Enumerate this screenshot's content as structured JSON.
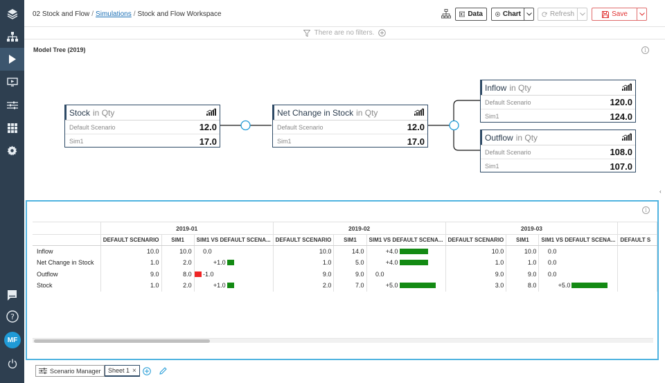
{
  "breadcrumb": {
    "root": "02 Stock and Flow",
    "link": "Simulations",
    "current": "Stock and Flow Workspace",
    "sep": "/"
  },
  "toolbar": {
    "data_label": "Data",
    "chart_label": "Chart",
    "refresh_label": "Refresh",
    "save_label": "Save"
  },
  "filters": {
    "empty_text": "There are no filters."
  },
  "model_tree": {
    "title": "Model Tree (2019)",
    "nodes": [
      {
        "name": "Stock",
        "unit": "in Qty",
        "rows": [
          {
            "label": "Default Scenario",
            "value": "12.0"
          },
          {
            "label": "Sim1",
            "value": "17.0"
          }
        ]
      },
      {
        "name": "Net Change in Stock",
        "unit": "in Qty",
        "rows": [
          {
            "label": "Default Scenario",
            "value": "12.0"
          },
          {
            "label": "Sim1",
            "value": "17.0"
          }
        ]
      },
      {
        "name": "Inflow",
        "unit": "in Qty",
        "rows": [
          {
            "label": "Default Scenario",
            "value": "120.0"
          },
          {
            "label": "Sim1",
            "value": "124.0"
          }
        ]
      },
      {
        "name": "Outflow",
        "unit": "in Qty",
        "rows": [
          {
            "label": "Default Scenario",
            "value": "108.0"
          },
          {
            "label": "Sim1",
            "value": "107.0"
          }
        ]
      }
    ]
  },
  "grid": {
    "periods": [
      "2019-01",
      "2019-02",
      "2019-03"
    ],
    "columns": [
      "DEFAULT SCENARIO",
      "SIM1",
      "SIM1 VS DEFAULT SCENA...",
      "DEFAULT S"
    ],
    "rows": [
      {
        "label": "Inflow",
        "cells": [
          {
            "def": "10.0",
            "sim": "10.0",
            "delta": "0.0",
            "bar": 0
          },
          {
            "def": "10.0",
            "sim": "14.0",
            "delta": "+4.0",
            "bar": 4
          },
          {
            "def": "10.0",
            "sim": "10.0",
            "delta": "0.0",
            "bar": 0
          }
        ]
      },
      {
        "label": "Net Change in Stock",
        "cells": [
          {
            "def": "1.0",
            "sim": "2.0",
            "delta": "+1.0",
            "bar": 1
          },
          {
            "def": "1.0",
            "sim": "5.0",
            "delta": "+4.0",
            "bar": 4
          },
          {
            "def": "1.0",
            "sim": "1.0",
            "delta": "0.0",
            "bar": 0
          }
        ]
      },
      {
        "label": "Outflow",
        "cells": [
          {
            "def": "9.0",
            "sim": "8.0",
            "delta": "-1.0",
            "bar": -1
          },
          {
            "def": "9.0",
            "sim": "9.0",
            "delta": "0.0",
            "bar": 0
          },
          {
            "def": "9.0",
            "sim": "9.0",
            "delta": "0.0",
            "bar": 0
          }
        ]
      },
      {
        "label": "Stock",
        "cells": [
          {
            "def": "1.0",
            "sim": "2.0",
            "delta": "+1.0",
            "bar": 1
          },
          {
            "def": "2.0",
            "sim": "7.0",
            "delta": "+5.0",
            "bar": 5
          },
          {
            "def": "3.0",
            "sim": "8.0",
            "delta": "+5.0",
            "bar": 5
          }
        ]
      }
    ]
  },
  "bottom_tabs": {
    "scenario_manager": "Scenario Manager",
    "sheet": "Sheet 1"
  },
  "user": {
    "initials": "MF"
  },
  "colors": {
    "sidebar": "#2e3f50",
    "accent": "#4fb3e0",
    "positive": "#138a13",
    "negative": "#ef2525",
    "save": "#e03030"
  }
}
